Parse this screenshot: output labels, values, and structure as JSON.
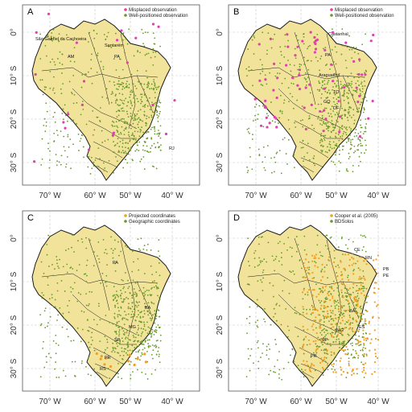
{
  "colors": {
    "land": "#f2e39a",
    "border": "#1a1a1a",
    "grid": "#c8c8c8",
    "misplaced": "#e040b0",
    "well": "#6a9a2a",
    "projected": "#f0a020",
    "geographic": "#6a9a2a",
    "cooper": "#f0a020",
    "bdsolos": "#6a9a2a"
  },
  "axes": {
    "x_ticks": [
      "70° W",
      "60° W",
      "50° W",
      "40° W"
    ],
    "y_ticks": [
      "0°",
      "10° S",
      "20° S",
      "30° S"
    ]
  },
  "panels": [
    {
      "letter": "A",
      "legend": [
        {
          "label": "Misplaced observation",
          "color_key": "misplaced"
        },
        {
          "label": "Well-positioned observation",
          "color_key": "well"
        }
      ],
      "labels": [
        "São Gabriel da Cachoeira",
        "AM",
        "Santarém",
        "PA",
        "RJ"
      ]
    },
    {
      "letter": "B",
      "legend": [
        {
          "label": "Misplaced observation",
          "color_key": "misplaced"
        },
        {
          "label": "Well-positioned observation",
          "color_key": "well"
        }
      ],
      "labels": [
        "Castanhal",
        "PA",
        "Araguatins",
        "TO",
        "GO",
        "DF"
      ]
    },
    {
      "letter": "C",
      "legend": [
        {
          "label": "Projected coordinates",
          "color_key": "projected"
        },
        {
          "label": "Geographic coordinates",
          "color_key": "geographic"
        }
      ],
      "labels": [
        "PA",
        "BA",
        "MG",
        "SP",
        "PR",
        "RS"
      ]
    },
    {
      "letter": "D",
      "legend": [
        {
          "label": "Cooper et al. (2005)",
          "color_key": "cooper"
        },
        {
          "label": "BDSolos",
          "color_key": "bdsolos"
        }
      ],
      "labels": [
        "CE",
        "RN",
        "PB",
        "PE",
        "BA",
        "MG",
        "ES",
        "SP",
        "PR"
      ]
    }
  ]
}
